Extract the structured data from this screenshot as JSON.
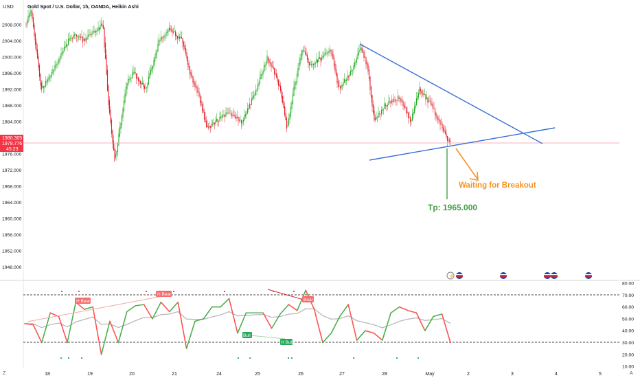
{
  "header": {
    "currency": "USD",
    "title": "Gold Spot / U.S. Dollar, 1h, OANDA, Heikin Ashi"
  },
  "price_badges": {
    "top": "1980.305",
    "mid": "1979.776",
    "timer": "45:23"
  },
  "price_axis": {
    "ticks": [
      "2008.000",
      "2004.000",
      "2000.000",
      "1996.000",
      "1992.000",
      "1988.000",
      "1984.000",
      "1980.000",
      "1976.000",
      "1972.000",
      "1968.000",
      "1964.000",
      "1960.000",
      "1956.000",
      "1952.000",
      "1948.000"
    ]
  },
  "osc_axis": {
    "ticks": [
      "80.00",
      "70.00",
      "60.00",
      "50.00",
      "40.00",
      "30.00",
      "20.00",
      "10.00"
    ]
  },
  "time_axis": {
    "ticks": [
      "18",
      "19",
      "20",
      "21",
      "24",
      "25",
      "26",
      "27",
      "28",
      "May",
      "2",
      "3",
      "4",
      "5"
    ]
  },
  "annotations": {
    "breakout": "Waiting for Breakout",
    "tp": "Tp: 1965.000"
  },
  "divergence_labels": {
    "h_bear_1": "H Bear",
    "h_bear_2": "H Bear",
    "bear": "Bear",
    "bull": "Bull",
    "h_bull": "H Bull"
  },
  "corner_labels": {
    "z": "Z",
    "a": "A"
  },
  "colors": {
    "up": "#26a69a",
    "up_bright": "#22ab22",
    "down": "#e0202c",
    "trendline": "#3a6fd8",
    "annotation_orange": "#f7931e",
    "tp_green": "#43a047",
    "price_badge": "#f23645",
    "osc_up": "#4caf50",
    "osc_down": "#ff5252"
  },
  "chart_data": {
    "type": "candlestick",
    "title": "Gold Spot / U.S. Dollar, 1h, OANDA, Heikin Ashi",
    "ylim": [
      1945,
      2012
    ],
    "x": [
      "18",
      "19",
      "20",
      "21",
      "24",
      "25",
      "26",
      "27",
      "28",
      "May"
    ],
    "series": [
      {
        "name": "Gold Spot / U.S. Dollar",
        "close_approx": [
          2008,
          2012,
          1992,
          2004,
          1990,
          1984,
          2002,
          1996,
          2006,
          1987,
          1996,
          1980,
          1992,
          1994,
          2004,
          1996,
          2009,
          2002,
          2002,
          1984,
          1990,
          1992,
          2000,
          1996,
          2002,
          1992,
          2001,
          1996,
          2001,
          1985,
          1990,
          1993,
          1986,
          1990,
          1990,
          1979,
          1980
        ]
      }
    ],
    "annotations": [
      {
        "text": "Waiting for Breakout"
      },
      {
        "text": "Tp: 1965.000",
        "value": 1965.0
      }
    ],
    "oscillator": {
      "ylim": [
        10,
        80
      ],
      "levels": [
        70,
        30
      ],
      "series": [
        {
          "values": [
            46,
            45,
            30,
            55,
            52,
            30,
            64,
            58,
            60,
            20,
            48,
            30,
            56,
            61,
            62,
            50,
            64,
            56,
            64,
            25,
            48,
            50,
            60,
            60,
            67,
            38,
            55,
            55,
            55,
            42,
            54,
            62,
            57,
            74,
            58,
            30,
            38,
            52,
            62,
            32,
            40,
            38,
            32,
            55,
            60,
            57,
            55,
            40,
            52,
            54,
            30
          ]
        }
      ]
    }
  }
}
